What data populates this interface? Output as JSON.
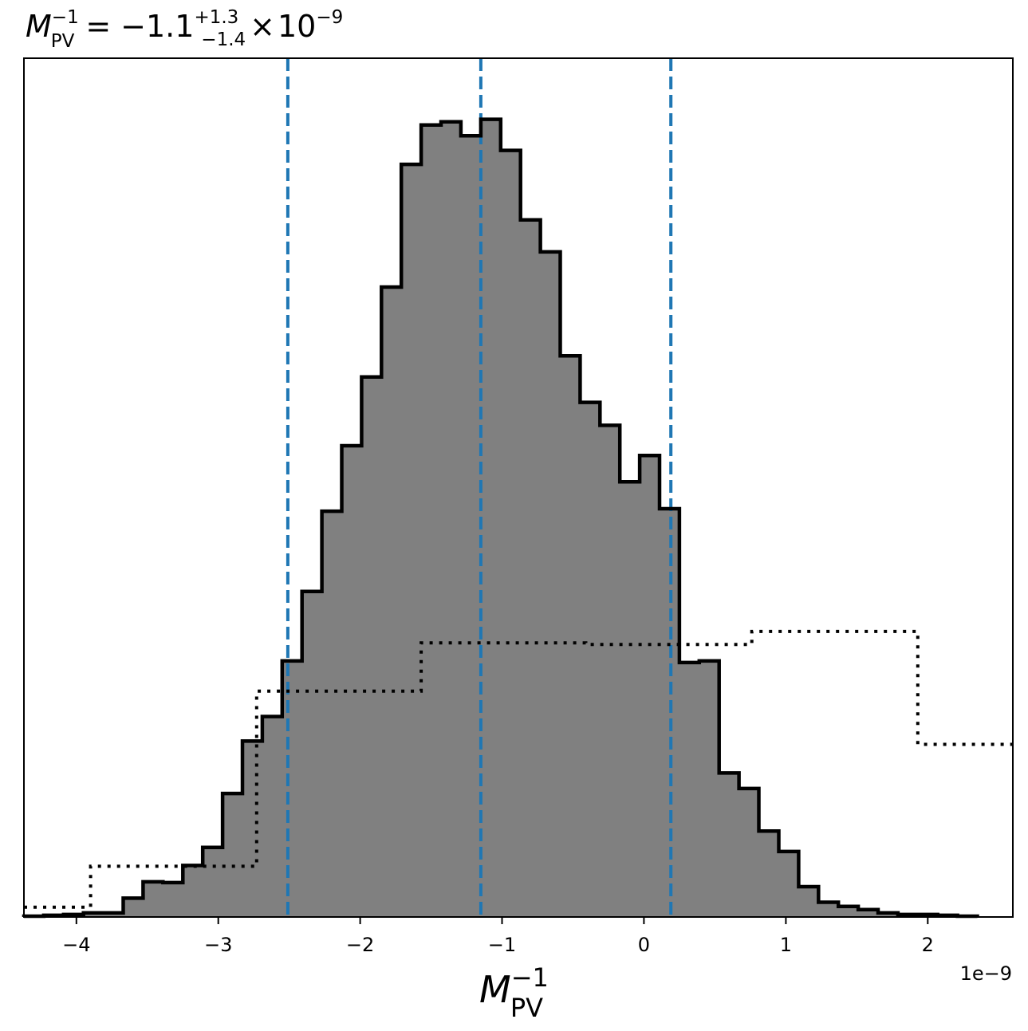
{
  "chart_data": {
    "type": "histogram",
    "title": {
      "symbol": "M",
      "subscript": "PV",
      "superscript": "−1",
      "equals": "=",
      "median": "−1.1",
      "upper": "+1.3",
      "lower": "−1.4",
      "times": "×",
      "base": "10",
      "exponent": "−9"
    },
    "xlabel": {
      "symbol": "M",
      "subscript": "PV",
      "superscript": "−1"
    },
    "offset_text": "1e−9",
    "xlim": [
      -4.37,
      2.6
    ],
    "ylim": [
      0,
      100
    ],
    "xticks": [
      {
        "value": -4,
        "label": "−4"
      },
      {
        "value": -3,
        "label": "−3"
      },
      {
        "value": -2,
        "label": "−2"
      },
      {
        "value": -1,
        "label": "−1"
      },
      {
        "value": 0,
        "label": "0"
      },
      {
        "value": 1,
        "label": "1"
      },
      {
        "value": 2,
        "label": "2"
      }
    ],
    "posterior": {
      "style": "filled step",
      "fill_color": "#808080",
      "edge_color": "#000000",
      "edges": [
        -4.37,
        -4.23,
        -4.09,
        -3.95,
        -3.81,
        -3.67,
        -3.53,
        -3.39,
        -3.25,
        -3.11,
        -2.97,
        -2.83,
        -2.69,
        -2.55,
        -2.41,
        -2.27,
        -2.13,
        -1.99,
        -1.85,
        -1.71,
        -1.57,
        -1.43,
        -1.29,
        -1.15,
        -1.01,
        -0.87,
        -0.73,
        -0.59,
        -0.45,
        -0.31,
        -0.17,
        -0.03,
        0.11,
        0.25,
        0.39,
        0.53,
        0.67,
        0.81,
        0.95,
        1.09,
        1.23,
        1.37,
        1.51,
        1.65,
        1.79,
        1.93,
        2.07,
        2.21,
        2.35
      ],
      "heights": [
        0.1,
        0.2,
        0.3,
        0.5,
        0.5,
        2.3,
        4.3,
        4.2,
        6.3,
        8.5,
        15.1,
        21.5,
        24.5,
        31.3,
        39.8,
        49.6,
        57.6,
        66.0,
        77.0,
        92.0,
        96.8,
        97.2,
        95.5,
        97.5,
        93.7,
        85.2,
        81.3,
        68.6,
        62.9,
        60.1,
        53.2,
        56.4,
        49.9,
        31.1,
        31.3,
        17.6,
        15.7,
        10.5,
        8.0,
        3.7,
        1.8,
        1.3,
        0.9,
        0.5,
        0.3,
        0.3,
        0.2,
        0.1
      ]
    },
    "prior": {
      "style": "dotted step",
      "color": "#000000",
      "edges": [
        -4.37,
        -3.9,
        -2.73,
        -1.57,
        -0.41,
        0.76,
        1.93,
        2.6
      ],
      "heights": [
        1.2,
        6.2,
        27.6,
        33.5,
        33.3,
        34.9,
        21.1
      ]
    },
    "quantile_lines": {
      "color": "#1f77b4",
      "style": "dashed",
      "values": [
        -2.51,
        -1.15,
        0.19
      ]
    }
  }
}
